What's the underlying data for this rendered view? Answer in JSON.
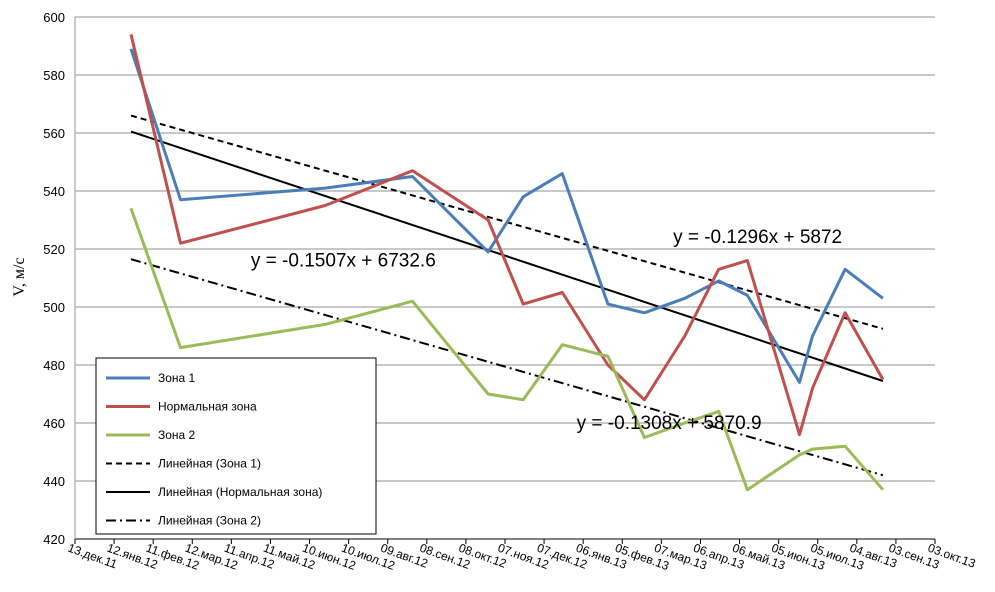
{
  "chart_data": {
    "type": "line",
    "ylabel": "V, м/с",
    "ylim": [
      420,
      600
    ],
    "yticks": [
      420,
      440,
      460,
      480,
      500,
      520,
      540,
      560,
      580,
      600
    ],
    "x_ticks": [
      "13.дек.11",
      "12.янв.12",
      "11.фев.12",
      "12.мар.12",
      "11.апр.12",
      "11.май.12",
      "10.июн.12",
      "10.июл.12",
      "09.авг.12",
      "08.сен.12",
      "08.окт.12",
      "07.ноя.12",
      "07.дек.12",
      "06.янв.13",
      "05.фев.13",
      "07.мар.13",
      "06.апр.13",
      "06.май.13",
      "05.июн.13",
      "05.июл.13",
      "04.авг.13",
      "03.сен.13",
      "03.окт.13"
    ],
    "grid": "horizontal",
    "x": [
      "2012-01-25",
      "2012-03-03",
      "2012-06-22",
      "2012-08-28",
      "2012-10-25",
      "2012-11-21",
      "2012-12-21",
      "2013-01-25",
      "2013-02-22",
      "2013-03-25",
      "2013-04-20",
      "2013-05-12",
      "2013-06-21",
      "2013-07-01",
      "2013-07-26",
      "2013-08-24"
    ],
    "series": [
      {
        "name": "Зона 1",
        "color": "#4a7ebb",
        "values": [
          589,
          537,
          541,
          545,
          519,
          538,
          546,
          501,
          498,
          503,
          509,
          504,
          474,
          490,
          513,
          503
        ]
      },
      {
        "name": "Нормальная зона",
        "color": "#c0504d",
        "values": [
          594,
          522,
          535,
          547,
          530,
          501,
          505,
          480,
          468,
          490,
          513,
          516,
          456,
          472,
          498,
          475
        ]
      },
      {
        "name": "Зона 2",
        "color": "#9bbb59",
        "values": [
          534,
          486,
          494,
          502,
          470,
          468,
          487,
          483,
          455,
          460,
          464,
          437,
          449,
          451,
          452,
          437
        ]
      }
    ],
    "trendlines": [
      {
        "name": "Линейная (Зона 1)",
        "color": "#000000",
        "dash": "dashed",
        "x": [
          "2012-01-25",
          "2013-08-24"
        ],
        "values": [
          566,
          492.5
        ]
      },
      {
        "name": "Линейная (Нормальная зона)",
        "color": "#000000",
        "dash": "solid",
        "x": [
          "2012-01-25",
          "2013-08-24"
        ],
        "values": [
          560.5,
          474.5
        ]
      },
      {
        "name": "Линейная (Зона 2)",
        "color": "#000000",
        "dash": "dashdot",
        "x": [
          "2012-01-25",
          "2013-08-24"
        ],
        "values": [
          516.5,
          442
        ]
      }
    ],
    "annotations": [
      {
        "text": "y = -0.1296x + 5872",
        "x": "2013-03-16",
        "y": 522
      },
      {
        "text": "y = -0.1507x + 6732.6",
        "x": "2012-04-26",
        "y": 514
      },
      {
        "text": "y = -0.1308x + 5870.9",
        "x": "2013-01-01",
        "y": 458
      }
    ],
    "legend": {
      "position": "bottom-left"
    }
  }
}
